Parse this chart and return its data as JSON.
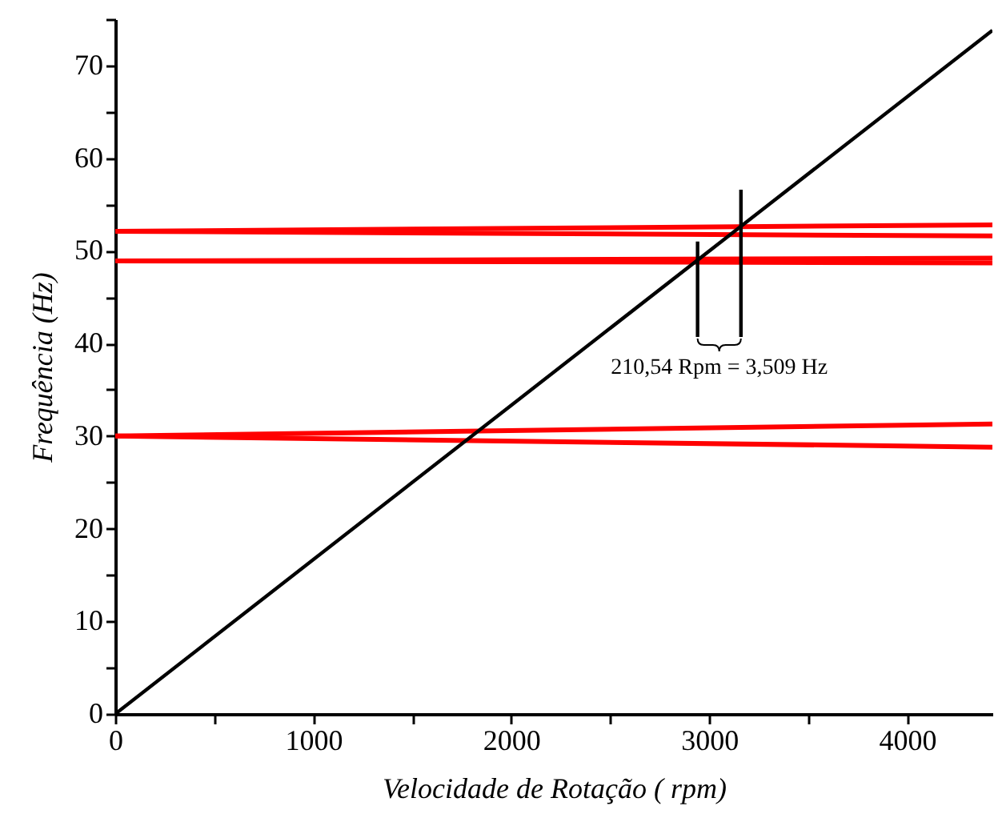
{
  "chart_data": {
    "type": "line",
    "xlabel": "Velocidade de Rotação  ( rpm)",
    "ylabel": "Frequência (Hz)",
    "xlim": [
      0,
      4430
    ],
    "ylim": [
      0,
      75
    ],
    "xticks": [
      0,
      {
        "value": 500,
        "label": null
      },
      1000,
      {
        "value": 1500,
        "label": null
      },
      2000,
      {
        "value": 2500,
        "label": null
      },
      3000,
      {
        "value": 3500,
        "label": null
      },
      4000
    ],
    "yticks": [
      0,
      {
        "value": 5,
        "label": null
      },
      10,
      {
        "value": 15,
        "label": null
      },
      20,
      {
        "value": 25,
        "label": null
      },
      30,
      {
        "value": 35,
        "label": null
      },
      40,
      {
        "value": 45,
        "label": null
      },
      50,
      {
        "value": 55,
        "label": null
      },
      60,
      {
        "value": 65,
        "label": null
      },
      70,
      {
        "value": 75,
        "label": null
      }
    ],
    "grid": false,
    "marker": "none",
    "line_style": "solid",
    "series": [
      {
        "color": "#ff0000",
        "x": [
          0,
          4430
        ],
        "values": [
          52.1,
          52.8
        ]
      },
      {
        "color": "#ff0000",
        "x": [
          0,
          4430
        ],
        "values": [
          52.1,
          51.6
        ]
      },
      {
        "color": "#ff0000",
        "x": [
          0,
          4430
        ],
        "values": [
          48.9,
          49.2
        ]
      },
      {
        "color": "#ff0000",
        "x": [
          0,
          4430
        ],
        "values": [
          48.9,
          48.7
        ]
      },
      {
        "color": "#ff0000",
        "x": [
          0,
          4430
        ],
        "values": [
          30.0,
          31.3
        ]
      },
      {
        "color": "#ff0000",
        "x": [
          0,
          4430
        ],
        "values": [
          30.0,
          28.8
        ]
      },
      {
        "color": "#000000",
        "x": [
          0,
          4430
        ],
        "values": [
          0,
          73.8
        ]
      },
      {
        "color": "#000000",
        "x": [
          2941,
          2941
        ],
        "values": [
          40.7,
          51.0
        ]
      },
      {
        "color": "#000000",
        "x": [
          3160,
          3160
        ],
        "values": [
          40.7,
          56.6
        ]
      }
    ],
    "annotations": [
      "210,54 Rpm = 3,509 Hz"
    ]
  }
}
